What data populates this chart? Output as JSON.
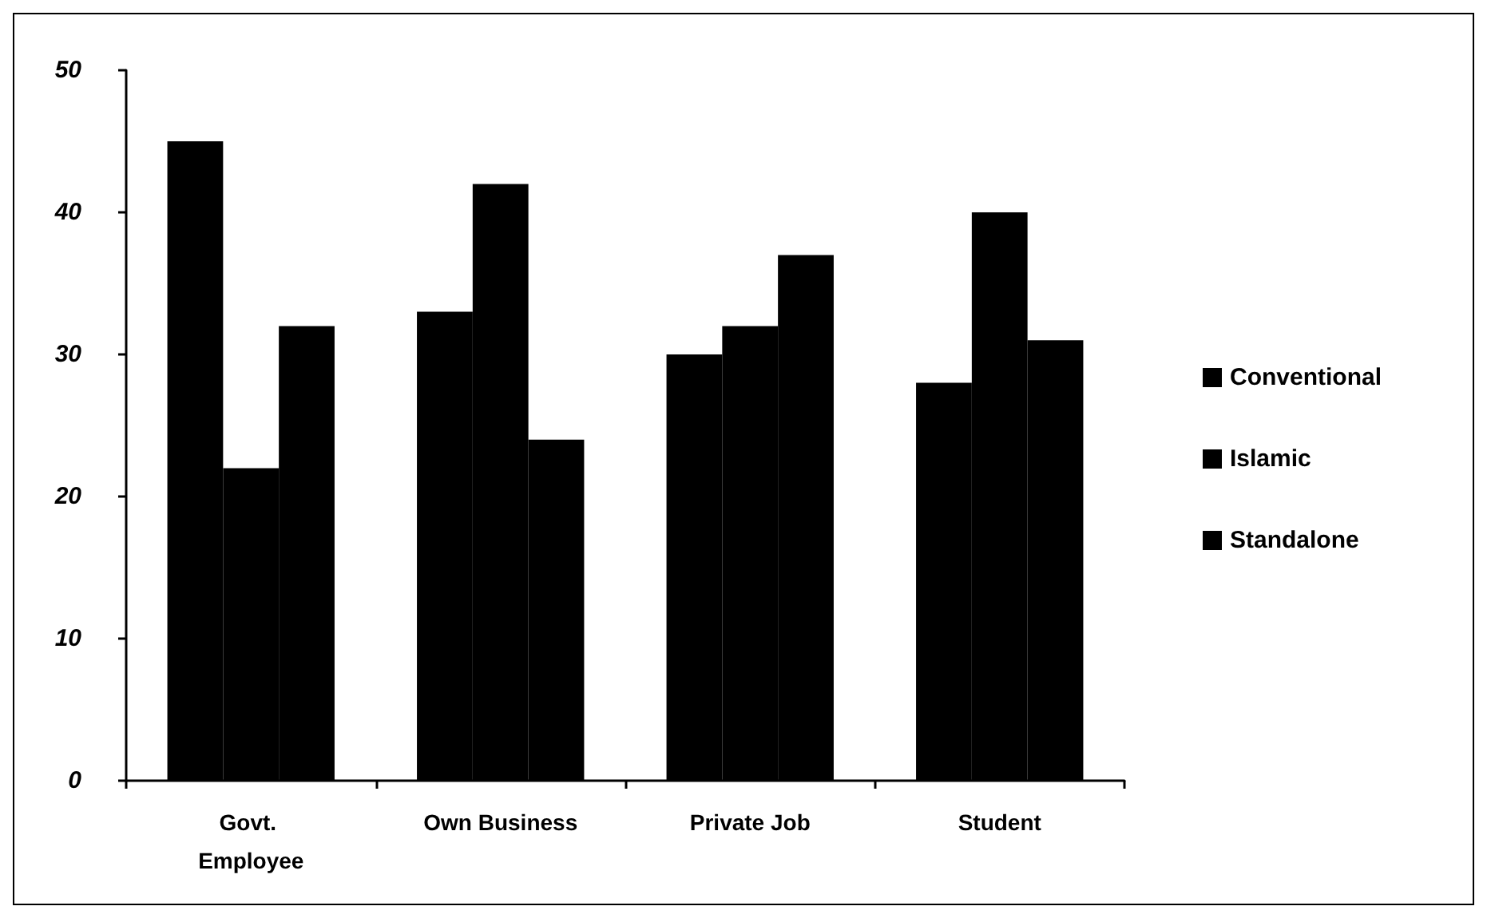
{
  "chart_data": {
    "type": "bar",
    "categories": [
      "Govt. Employee",
      "Own Business",
      "Private Job",
      "Student"
    ],
    "series": [
      {
        "name": "Conventional",
        "color": "#000000",
        "values": [
          45,
          33,
          30,
          28
        ]
      },
      {
        "name": "Islamic",
        "color": "#000000",
        "values": [
          22,
          42,
          32,
          40
        ]
      },
      {
        "name": "Standalone",
        "color": "#000000",
        "values": [
          32,
          24,
          37,
          31
        ]
      }
    ],
    "ylim": [
      0,
      50
    ],
    "yticks": [
      0,
      10,
      20,
      30,
      40,
      50
    ],
    "legend": "right"
  }
}
